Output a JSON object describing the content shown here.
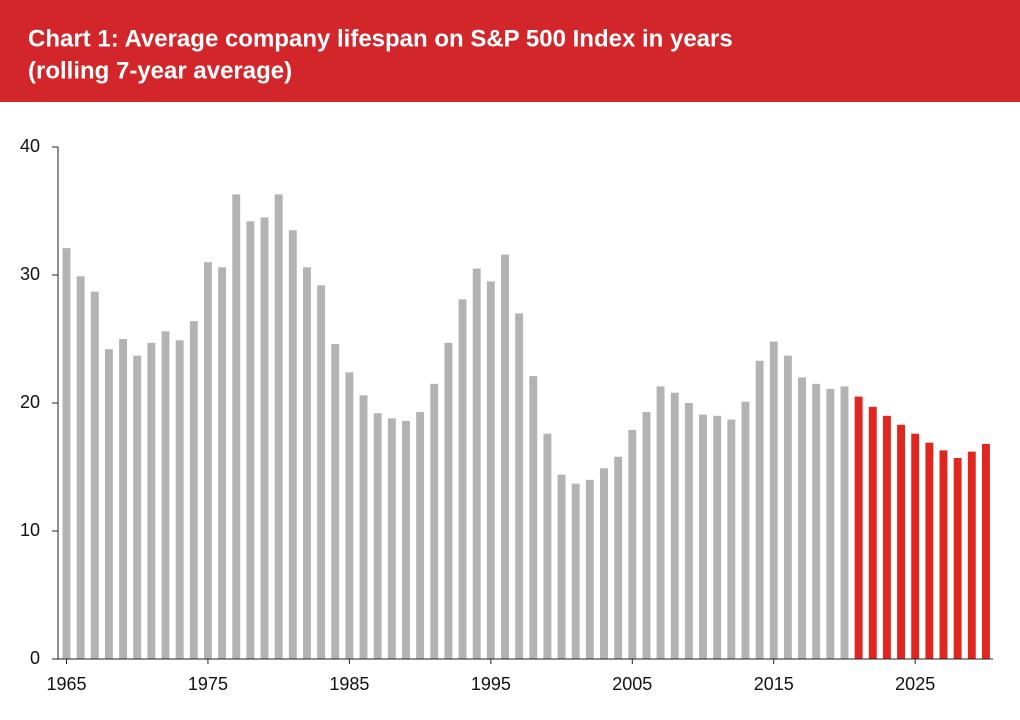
{
  "chart_data": {
    "type": "bar",
    "title": "Chart 1: Average company lifespan on S&P 500 Index in years",
    "subtitle": "(rolling 7-year average)",
    "x": [
      1965,
      1966,
      1967,
      1968,
      1969,
      1970,
      1971,
      1972,
      1973,
      1974,
      1975,
      1976,
      1977,
      1978,
      1979,
      1980,
      1981,
      1982,
      1983,
      1984,
      1985,
      1986,
      1987,
      1988,
      1989,
      1990,
      1991,
      1992,
      1993,
      1994,
      1995,
      1996,
      1997,
      1998,
      1999,
      2000,
      2001,
      2002,
      2003,
      2004,
      2005,
      2006,
      2007,
      2008,
      2009,
      2010,
      2011,
      2012,
      2013,
      2014,
      2015,
      2016,
      2017,
      2018,
      2019,
      2020,
      2021,
      2022,
      2023,
      2024,
      2025,
      2026,
      2027,
      2028,
      2029,
      2030
    ],
    "series": [
      {
        "color": "#b3b3b3",
        "values": [
          32.1,
          29.9,
          28.7,
          24.2,
          25.0,
          23.7,
          24.7,
          25.6,
          24.9,
          26.4,
          31.0,
          30.6,
          36.3,
          34.2,
          34.5,
          36.3,
          33.5,
          30.6,
          29.2,
          24.6,
          22.4,
          20.6,
          19.2,
          18.8,
          18.6,
          19.3,
          21.5,
          24.7,
          28.1,
          30.5,
          29.5,
          31.6,
          27.0,
          22.1,
          17.6,
          14.4,
          13.7,
          14.0,
          14.9,
          15.8,
          17.9,
          19.3,
          21.3,
          20.8,
          20.0,
          19.1,
          19.0,
          18.7,
          20.1,
          23.3,
          24.8,
          23.7,
          22.0,
          21.5,
          21.1,
          21.3,
          null,
          null,
          null,
          null,
          null,
          null,
          null,
          null,
          null,
          null
        ]
      },
      {
        "color": "#e0261f",
        "values": [
          null,
          null,
          null,
          null,
          null,
          null,
          null,
          null,
          null,
          null,
          null,
          null,
          null,
          null,
          null,
          null,
          null,
          null,
          null,
          null,
          null,
          null,
          null,
          null,
          null,
          null,
          null,
          null,
          null,
          null,
          null,
          null,
          null,
          null,
          null,
          null,
          null,
          null,
          null,
          null,
          null,
          null,
          null,
          null,
          null,
          null,
          null,
          null,
          null,
          null,
          null,
          null,
          null,
          null,
          null,
          null,
          20.5,
          19.7,
          19.0,
          18.3,
          17.6,
          16.9,
          16.3,
          15.7,
          16.2,
          16.8
        ]
      }
    ],
    "xlim": [
      1964.4,
      2030.5
    ],
    "xticks": [
      1965,
      1975,
      1985,
      1995,
      2005,
      2015,
      2025
    ],
    "ylim": [
      0,
      40
    ],
    "yticks": [
      0,
      10,
      20,
      30,
      40
    ],
    "grid": false
  }
}
